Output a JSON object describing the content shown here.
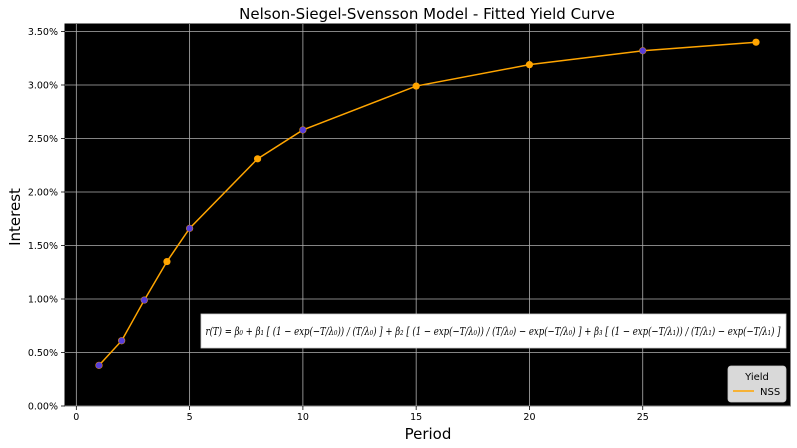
{
  "chart_data": {
    "type": "line",
    "title": "Nelson-Siegel-Svensson Model - Fitted Yield Curve",
    "xlabel": "Period",
    "ylabel": "Interest",
    "xlim": [
      -0.5,
      31.5
    ],
    "ylim": [
      0.0,
      0.0357
    ],
    "x_ticks": [
      0,
      5,
      10,
      15,
      20,
      25
    ],
    "y_ticks": [
      0.0,
      0.005,
      0.01,
      0.015,
      0.02,
      0.025,
      0.03,
      0.035
    ],
    "y_tick_labels": [
      "0.00%",
      "0.50%",
      "1.00%",
      "1.50%",
      "2.00%",
      "2.50%",
      "3.00%",
      "3.50%"
    ],
    "grid": true,
    "background": "#000000",
    "series": [
      {
        "name": "NSS",
        "kind": "line",
        "color": "#ffa500",
        "x": [
          1,
          2,
          3,
          4,
          5,
          8,
          10,
          15,
          20,
          25,
          30
        ],
        "values": [
          0.0038,
          0.0061,
          0.0099,
          0.0135,
          0.0166,
          0.0231,
          0.0258,
          0.0299,
          0.0319,
          0.0332,
          0.034
        ]
      },
      {
        "kind": "fitted_markers",
        "color": "#ffa500",
        "x": [
          1,
          2,
          3,
          4,
          5,
          8,
          10,
          15,
          20,
          25,
          30
        ],
        "values": [
          0.0038,
          0.0061,
          0.0099,
          0.0135,
          0.0166,
          0.0231,
          0.0258,
          0.0299,
          0.0319,
          0.0332,
          0.034
        ]
      },
      {
        "kind": "observed_markers",
        "color": "#3a2cff",
        "x": [
          1,
          2,
          3,
          5,
          10,
          25
        ],
        "values": [
          0.0038,
          0.0061,
          0.0099,
          0.0166,
          0.0258,
          0.0332
        ]
      }
    ],
    "legend": {
      "title": "Yield",
      "position": "lower-right",
      "entries": [
        "NSS"
      ]
    },
    "annotation": {
      "formula": "r(T) = β₀ + β₁ [ (1 − exp(−T/λ₀)) / (T/λ₀) ] + β₂ [ (1 − exp(−T/λ₀)) / (T/λ₀) − exp(−T/λ₀) ] + β₃ [ (1 − exp(−T/λ₁)) / (T/λ₁) − exp(−T/λ₁) ]"
    }
  }
}
